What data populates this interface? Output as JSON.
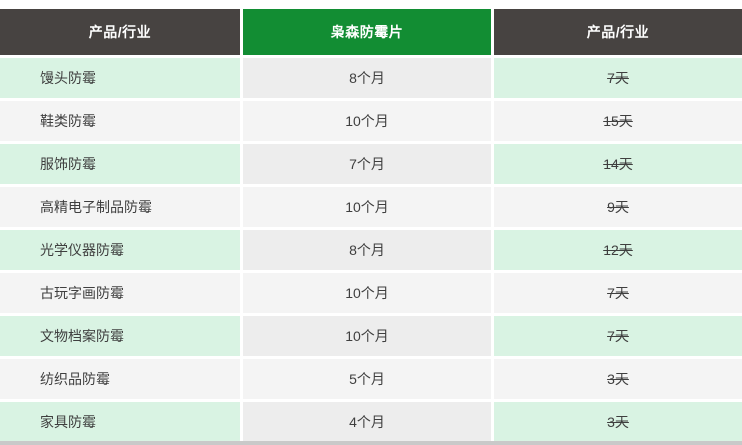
{
  "table": {
    "headers": [
      "产品/行业",
      "枭森防霉片",
      "产品/行业"
    ],
    "rows": [
      {
        "product": "馒头防霉",
        "duration": "8个月",
        "days": "7天"
      },
      {
        "product": "鞋类防霉",
        "duration": "10个月",
        "days": "15天"
      },
      {
        "product": "服饰防霉",
        "duration": "7个月",
        "days": "14天"
      },
      {
        "product": "高精电子制品防霉",
        "duration": "10个月",
        "days": "9天"
      },
      {
        "product": "光学仪器防霉",
        "duration": "8个月",
        "days": "12天"
      },
      {
        "product": "古玩字画防霉",
        "duration": "10个月",
        "days": "7天"
      },
      {
        "product": "文物档案防霉",
        "duration": "10个月",
        "days": "7天"
      },
      {
        "product": "纺织品防霉",
        "duration": "5个月",
        "days": "3天"
      },
      {
        "product": "家具防霉",
        "duration": "4个月",
        "days": "3天"
      }
    ]
  },
  "colors": {
    "header_dark_bg": "#474341",
    "header_green_bg": "#128d33",
    "row_green_bg": "#d9f3e3",
    "row_gray_bg": "#ededed",
    "row_alt_bg": "#f4f4f4",
    "header_text": "#ffffff",
    "cell_text": "#3f3f3f",
    "bottom_bar": "#c9c9c9"
  }
}
